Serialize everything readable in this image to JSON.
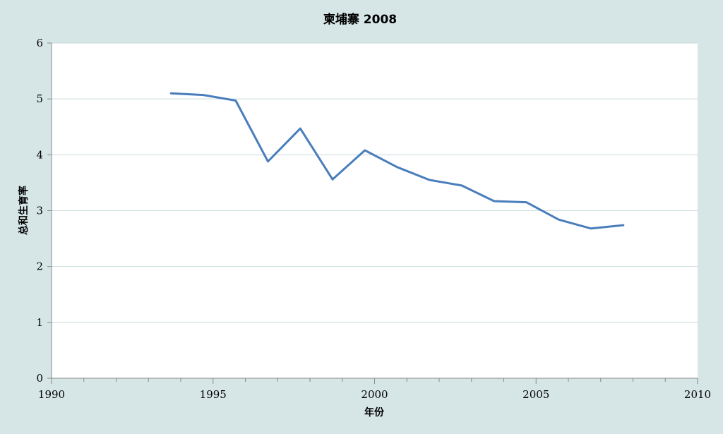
{
  "chart_data": {
    "type": "line",
    "title": "柬埔寨 2008",
    "xlabel": "年份",
    "ylabel": "总和生育率",
    "xlim": [
      1990,
      2010
    ],
    "ylim": [
      0,
      6
    ],
    "x_ticks": [
      1990,
      1995,
      2000,
      2005,
      2010
    ],
    "y_ticks": [
      0,
      1,
      2,
      3,
      4,
      5,
      6
    ],
    "grid": "horizontal",
    "legend": "none",
    "series": [
      {
        "x": [
          1993.7,
          1994.7,
          1995.7,
          1996.7,
          1997.7,
          1998.7,
          1999.7,
          2000.7,
          2001.7,
          2002.7,
          2003.7,
          2004.7,
          2005.7,
          2006.7,
          2007.7
        ],
        "values": [
          5.1,
          5.07,
          4.97,
          3.88,
          4.47,
          3.56,
          4.08,
          3.78,
          3.55,
          3.45,
          3.17,
          3.15,
          2.84,
          2.68,
          2.74
        ]
      }
    ],
    "colors": {
      "line": "#4a7ebb",
      "plot_background": "#ffffff",
      "page_background": "#d6e6e6",
      "gridline": "#c8dcdc",
      "axis": "#888888"
    }
  }
}
